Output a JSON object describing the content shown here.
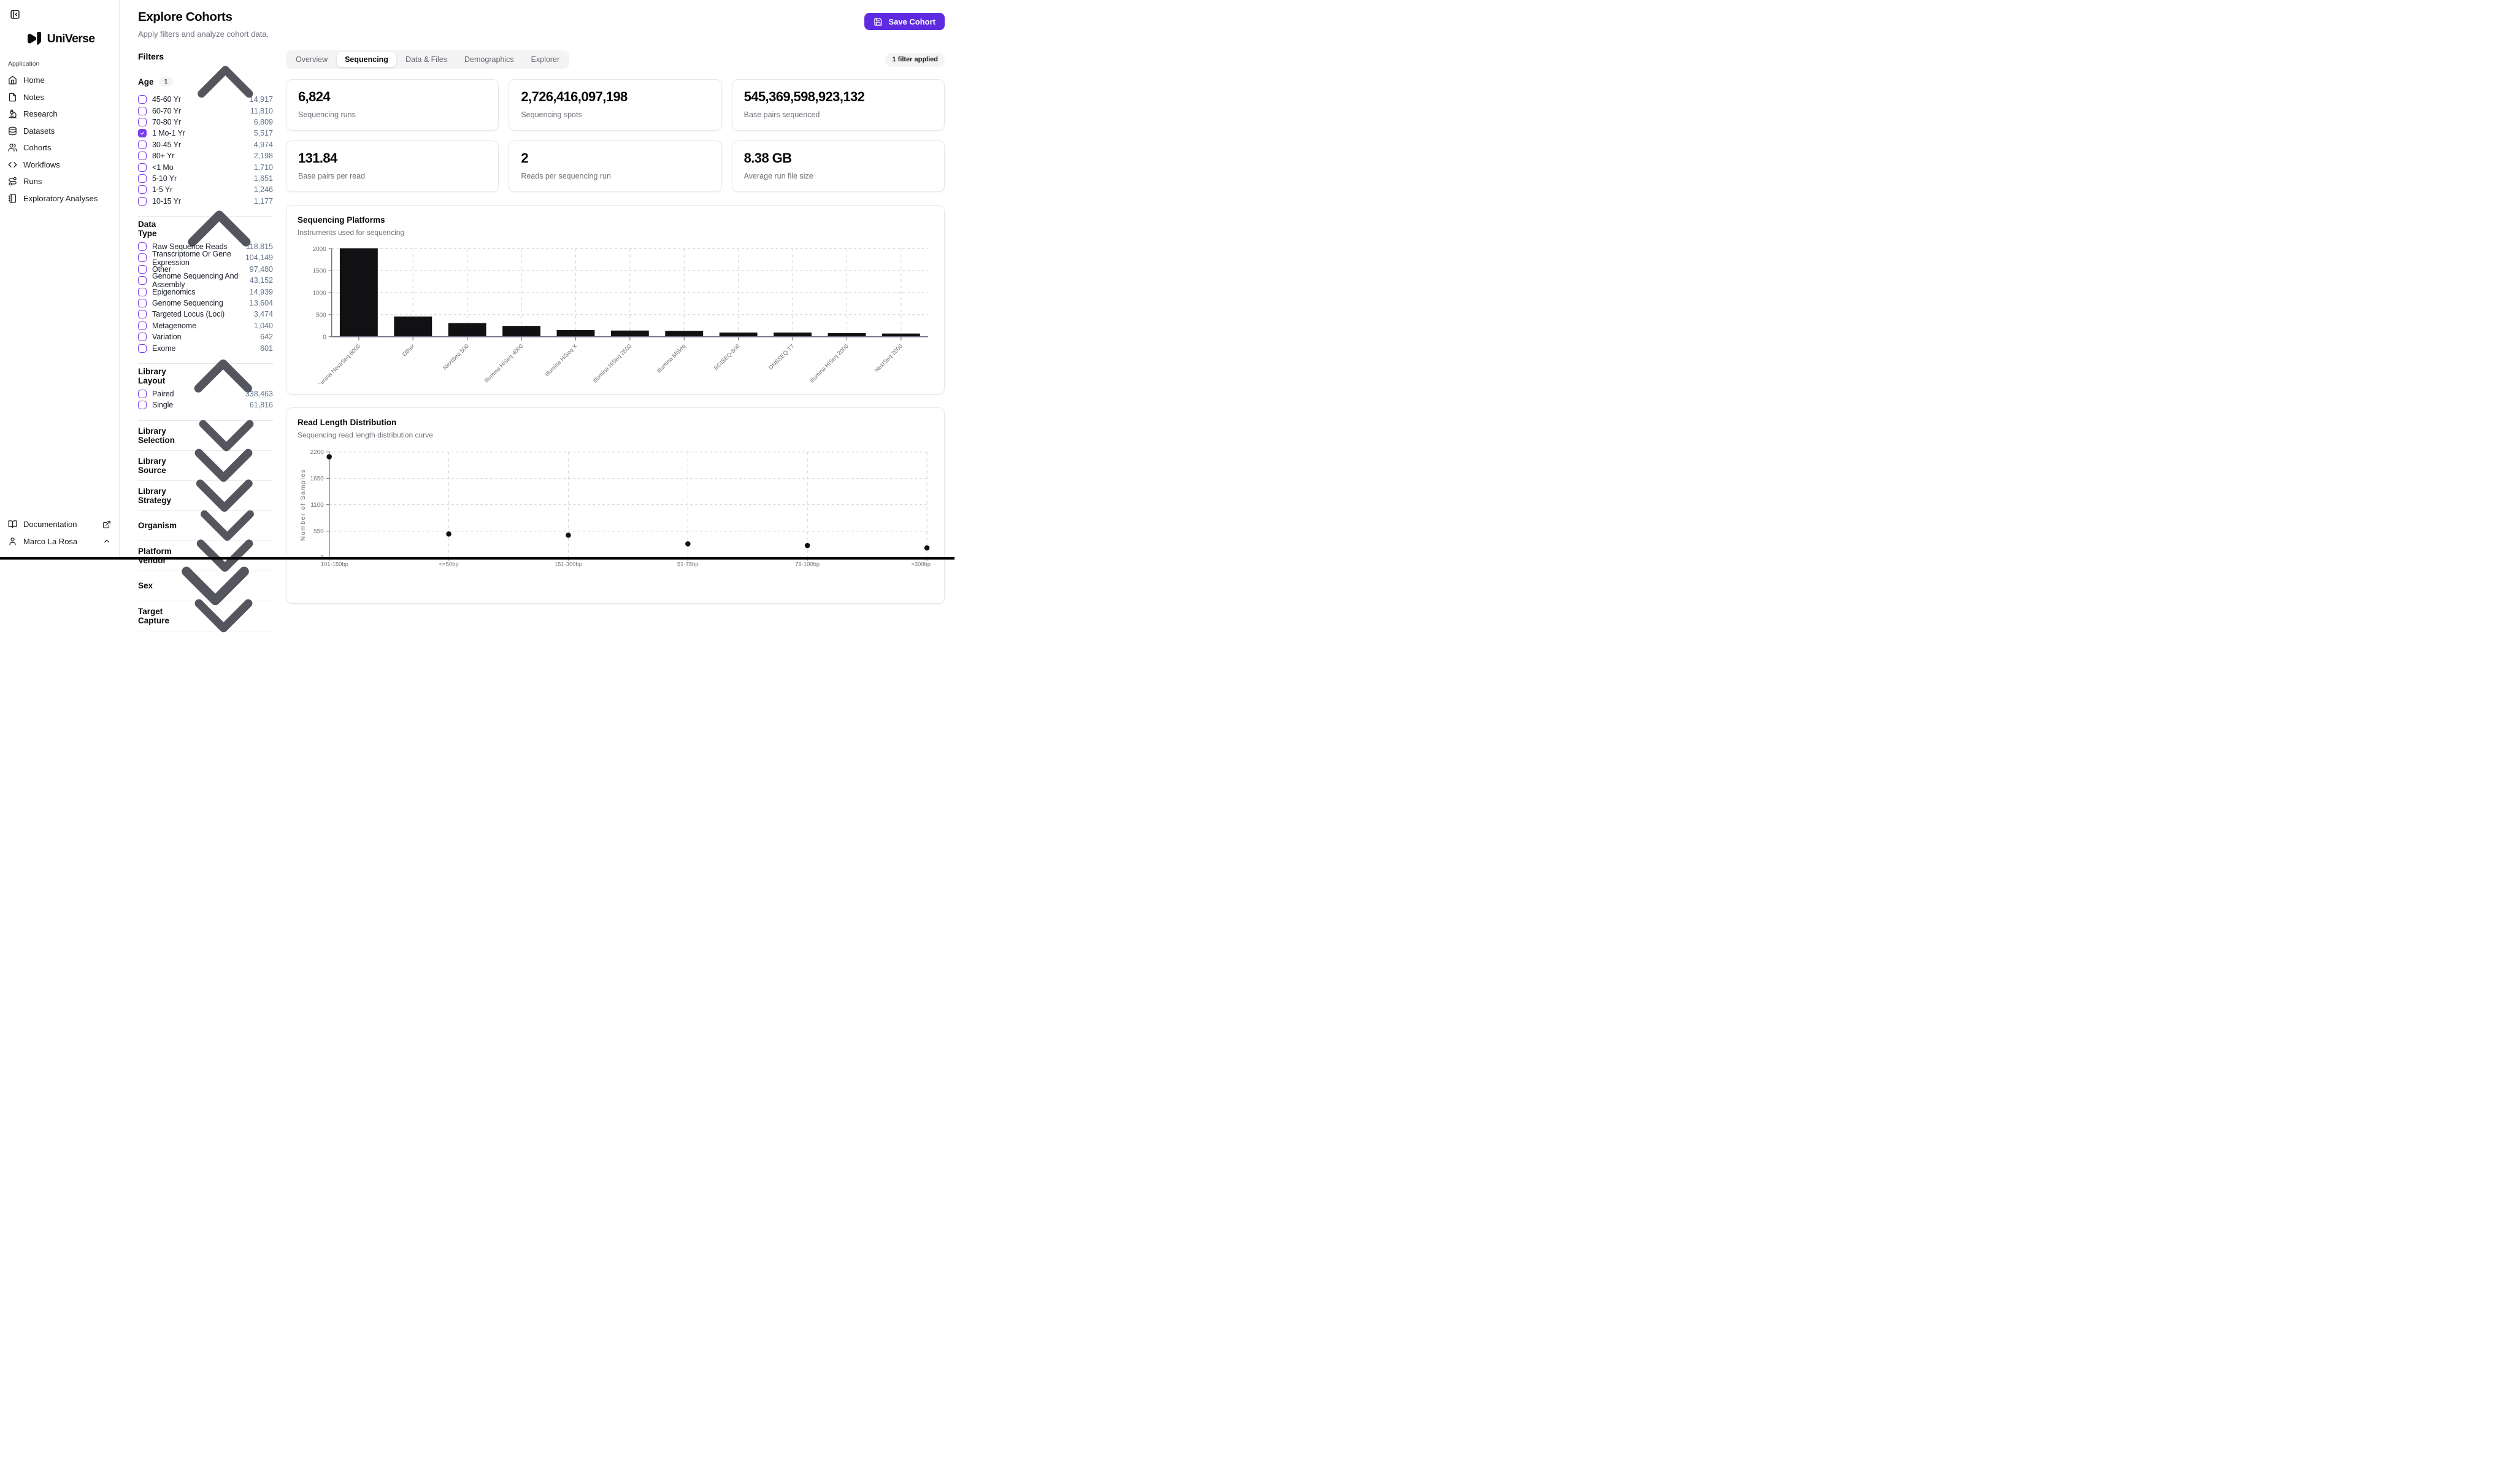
{
  "brand": {
    "name": "UniVerse"
  },
  "sidebar": {
    "section_label": "Application",
    "items": [
      {
        "label": "Home",
        "icon": "home"
      },
      {
        "label": "Notes",
        "icon": "notes"
      },
      {
        "label": "Research",
        "icon": "research"
      },
      {
        "label": "Datasets",
        "icon": "datasets"
      },
      {
        "label": "Cohorts",
        "icon": "cohorts"
      },
      {
        "label": "Workflows",
        "icon": "workflows"
      },
      {
        "label": "Runs",
        "icon": "runs"
      },
      {
        "label": "Exploratory Analyses",
        "icon": "exploratory"
      }
    ],
    "footer": {
      "documentation_label": "Documentation",
      "user_name": "Marco La Rosa"
    }
  },
  "header": {
    "title": "Explore Cohorts",
    "subtitle": "Apply filters and analyze cohort data.",
    "save_button_label": "Save Cohort"
  },
  "tabs": {
    "items": [
      "Overview",
      "Sequencing",
      "Data & Files",
      "Demographics",
      "Explorer"
    ],
    "active": "Sequencing",
    "filter_badge": "1 filter applied"
  },
  "filters": {
    "heading": "Filters",
    "sections": [
      {
        "title": "Age",
        "badge": "1",
        "expanded": true,
        "items": [
          {
            "label": "45-60 Yr",
            "count": "14,917",
            "checked": false
          },
          {
            "label": "60-70 Yr",
            "count": "11,810",
            "checked": false
          },
          {
            "label": "70-80 Yr",
            "count": "6,809",
            "checked": false
          },
          {
            "label": "1 Mo-1 Yr",
            "count": "5,517",
            "checked": true
          },
          {
            "label": "30-45 Yr",
            "count": "4,974",
            "checked": false
          },
          {
            "label": "80+ Yr",
            "count": "2,198",
            "checked": false
          },
          {
            "label": "<1 Mo",
            "count": "1,710",
            "checked": false
          },
          {
            "label": "5-10 Yr",
            "count": "1,651",
            "checked": false
          },
          {
            "label": "1-5 Yr",
            "count": "1,246",
            "checked": false
          },
          {
            "label": "10-15 Yr",
            "count": "1,177",
            "checked": false
          }
        ]
      },
      {
        "title": "Data Type",
        "badge": null,
        "expanded": true,
        "items": [
          {
            "label": "Raw Sequence Reads",
            "count": "118,815",
            "checked": false
          },
          {
            "label": "Transcriptome Or Gene Expression",
            "count": "104,149",
            "checked": false
          },
          {
            "label": "Other",
            "count": "97,480",
            "checked": false
          },
          {
            "label": "Genome Sequencing And Assembly",
            "count": "43,152",
            "checked": false
          },
          {
            "label": "Epigenomics",
            "count": "14,939",
            "checked": false
          },
          {
            "label": "Genome Sequencing",
            "count": "13,604",
            "checked": false
          },
          {
            "label": "Targeted Locus (Loci)",
            "count": "3,474",
            "checked": false
          },
          {
            "label": "Metagenome",
            "count": "1,040",
            "checked": false
          },
          {
            "label": "Variation",
            "count": "642",
            "checked": false
          },
          {
            "label": "Exome",
            "count": "601",
            "checked": false
          }
        ]
      },
      {
        "title": "Library Layout",
        "badge": null,
        "expanded": true,
        "items": [
          {
            "label": "Paired",
            "count": "338,463",
            "checked": false
          },
          {
            "label": "Single",
            "count": "61,816",
            "checked": false
          }
        ]
      },
      {
        "title": "Library Selection",
        "badge": null,
        "expanded": false,
        "items": []
      },
      {
        "title": "Library Source",
        "badge": null,
        "expanded": false,
        "items": []
      },
      {
        "title": "Library Strategy",
        "badge": null,
        "expanded": false,
        "items": []
      },
      {
        "title": "Organism",
        "badge": null,
        "expanded": false,
        "items": []
      },
      {
        "title": "Platform Vendor",
        "badge": null,
        "expanded": false,
        "items": []
      },
      {
        "title": "Sex",
        "badge": null,
        "expanded": false,
        "items": []
      },
      {
        "title": "Target Capture",
        "badge": null,
        "expanded": false,
        "items": []
      }
    ]
  },
  "stats": {
    "cards": [
      {
        "value": "6,824",
        "label": "Sequencing runs"
      },
      {
        "value": "2,726,416,097,198",
        "label": "Sequencing spots"
      },
      {
        "value": "545,369,598,923,132",
        "label": "Base pairs sequenced"
      },
      {
        "value": "131.84",
        "label": "Base pairs per read"
      },
      {
        "value": "2",
        "label": "Reads per sequencing run"
      },
      {
        "value": "8.38 GB",
        "label": "Average run file size"
      }
    ]
  },
  "chart_data": [
    {
      "type": "bar",
      "title": "Sequencing Platforms",
      "subtitle": "Instruments used for sequencing",
      "categories": [
        "Illumina NovaSeq 6000",
        "Other",
        "NextSeq 500",
        "Illumina HiSeq 4000",
        "Illumina HiSeq X",
        "Illumina HiSeq 2500",
        "Illumina MiSeq",
        "BGISEQ-500",
        "DNBSEQ-T7",
        "Illumina HiSeq 2000",
        "NextSeq 2000"
      ],
      "values": [
        2010,
        460,
        310,
        245,
        150,
        140,
        135,
        95,
        95,
        82,
        72
      ],
      "xlabel": "",
      "ylabel": "",
      "yticks": [
        0,
        500,
        1000,
        1500,
        2000
      ],
      "ylim": [
        0,
        2010
      ],
      "grid": true,
      "legend": "none",
      "bar_color": "#111113"
    },
    {
      "type": "scatter",
      "title": "Read Length Distribution",
      "subtitle": "Sequencing read length distribution curve",
      "categories": [
        "101-150bp",
        "<=50bp",
        "151-300bp",
        "51-75bp",
        "76-100bp",
        ">300bp"
      ],
      "values": [
        2100,
        490,
        465,
        285,
        250,
        200
      ],
      "xlabel": "",
      "ylabel": "Number of Samples",
      "yticks": [
        0,
        550,
        1100,
        1650,
        2200
      ],
      "ylim": [
        0,
        2200
      ],
      "grid": true,
      "legend": "none",
      "point_color": "#111113"
    }
  ],
  "colors": {
    "accent_button": "#5f2be0",
    "checkbox_purple": "#7c3aed",
    "grid_line": "#d6d6da",
    "axis_line": "#6f7280",
    "tick_text": "#71717a",
    "bar_fill": "#111113",
    "card_border": "#e7e7ea"
  }
}
